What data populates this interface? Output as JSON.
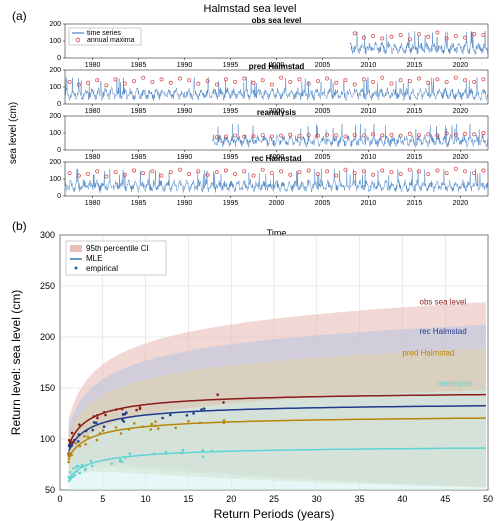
{
  "figure_title": "Halmstad sea level",
  "title_fontsize": 11,
  "panel_a": {
    "label": "(a)",
    "ylabel": "sea level (cm)",
    "ylabel_fontsize": 10,
    "xlabel": "Time",
    "xlabel_fontsize": 9,
    "ytick_labels": [
      "0",
      "100",
      "200"
    ],
    "ytick_values": [
      0,
      100,
      200
    ],
    "xtick_labels": [
      "1980",
      "1985",
      "1990",
      "1995",
      "2000",
      "2005",
      "2010",
      "2015",
      "2020"
    ],
    "xlim": [
      1977,
      2023
    ],
    "ylim": [
      0,
      200
    ],
    "series_color": "#2b6fbb",
    "maxima_color": "#d64545",
    "legend": {
      "items": [
        "time series",
        "annual maxima"
      ],
      "fontsize": 7
    },
    "subplots": [
      {
        "title": "obs sea level",
        "start_year": 2008,
        "n_years": 15,
        "annual_maxima": [
          145,
          120,
          130,
          115,
          125,
          135,
          110,
          140,
          125,
          150,
          115,
          130,
          120,
          140,
          135
        ]
      },
      {
        "title": "pred Halmstad",
        "start_year": 1977,
        "n_years": 46,
        "annual_maxima": [
          130,
          115,
          125,
          140,
          110,
          145,
          120,
          135,
          155,
          130,
          145,
          125,
          150,
          140,
          120,
          135,
          115,
          145,
          130,
          150,
          125,
          140,
          115,
          155,
          130,
          145,
          120,
          135,
          150,
          125,
          140,
          115,
          145,
          130,
          155,
          120,
          140,
          135,
          150,
          125,
          145,
          130,
          155,
          140,
          130,
          145
        ]
      },
      {
        "title": "reanalysis",
        "start_year": 1993,
        "n_years": 30,
        "annual_maxima": [
          75,
          80,
          85,
          78,
          82,
          88,
          80,
          85,
          90,
          82,
          88,
          84,
          90,
          86,
          80,
          88,
          85,
          92,
          86,
          90,
          84,
          95,
          88,
          92,
          86,
          98,
          90,
          95,
          92,
          100
        ]
      },
      {
        "title": "rec Halmstad",
        "start_year": 1977,
        "n_years": 46,
        "annual_maxima": [
          135,
          120,
          130,
          145,
          115,
          140,
          125,
          150,
          135,
          145,
          120,
          140,
          155,
          130,
          145,
          125,
          140,
          150,
          130,
          145,
          120,
          155,
          135,
          145,
          125,
          140,
          150,
          130,
          145,
          120,
          155,
          135,
          145,
          125,
          150,
          140,
          130,
          155,
          145,
          130,
          150,
          135,
          160,
          145,
          135,
          150
        ]
      }
    ],
    "subplot_title_fontsize": 8,
    "tick_fontsize": 7
  },
  "panel_b": {
    "label": "(b)",
    "xlabel": "Return Periods (years)",
    "xlabel_fontsize": 12,
    "ylabel": "Return level: sea level (cm)",
    "ylabel_fontsize": 12,
    "xlim": [
      0,
      50
    ],
    "ylim": [
      50,
      300
    ],
    "xtick": [
      0,
      5,
      10,
      15,
      20,
      25,
      30,
      35,
      40,
      45,
      50
    ],
    "ytick": [
      50,
      100,
      150,
      200,
      250,
      300
    ],
    "tick_fontsize": 9,
    "grid_color": "#cccccc",
    "background_color": "#ffffff",
    "legend": {
      "title_ci": "95th percentile CI",
      "items": [
        "MLE",
        "empirical"
      ],
      "fontsize": 8,
      "ci_swatch": "#e8c0b8"
    },
    "curves": [
      {
        "name": "obs sea level",
        "color": "#8b1a1a",
        "ci_fill": "#e8b8b0",
        "A": 85,
        "B": 0.75,
        "L": 63,
        "text_x": 42,
        "text_y": 232
      },
      {
        "name": "rec Halmstad",
        "color": "#1e3a8a",
        "ci_fill": "#b8c4e0",
        "A": 75,
        "B": 0.72,
        "L": 62,
        "text_x": 42,
        "text_y": 203
      },
      {
        "name": "pred Halmstad",
        "color": "#b8860b",
        "ci_fill": "#e0d4a8",
        "A": 65,
        "B": 0.68,
        "L": 60,
        "text_x": 40,
        "text_y": 182
      },
      {
        "name": "reanalysis",
        "color": "#5fd4d4",
        "ci_fill": "#d0f0f0",
        "A": 50,
        "B": 0.65,
        "L": 45,
        "text_x": 44,
        "text_y": 152
      }
    ],
    "empirical_marker": "dot",
    "label_fontsize": 8
  }
}
